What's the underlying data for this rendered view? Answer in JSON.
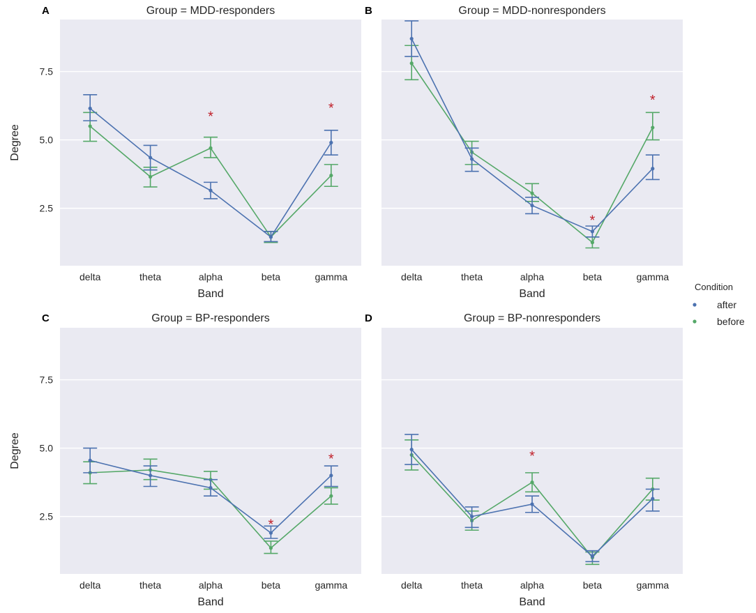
{
  "colors": {
    "after": "#4c72b0",
    "before": "#55a868",
    "star": "#c0202a",
    "background": "#eaeaf2"
  },
  "legend": {
    "title": "Condition",
    "items": [
      {
        "label": "after",
        "color": "#4c72b0"
      },
      {
        "label": "before",
        "color": "#55a868"
      }
    ]
  },
  "chart_data": [
    {
      "type": "line",
      "letter": "A",
      "title": "Group = MDD-responders",
      "xlabel": "Band",
      "ylabel": "Degree",
      "categories": [
        "delta",
        "theta",
        "alpha",
        "beta",
        "gamma"
      ],
      "yticks": [
        "2.5",
        "5.0",
        "7.5"
      ],
      "ylim": [
        0.4,
        9.4
      ],
      "series": [
        {
          "name": "after",
          "values": [
            6.15,
            4.35,
            3.15,
            1.45,
            4.9
          ],
          "err_low": [
            5.7,
            3.9,
            2.85,
            1.28,
            4.45
          ],
          "err_high": [
            6.65,
            4.8,
            3.45,
            1.65,
            5.35
          ]
        },
        {
          "name": "before",
          "values": [
            5.5,
            3.65,
            4.7,
            1.45,
            3.7
          ],
          "err_low": [
            4.95,
            3.28,
            4.35,
            1.25,
            3.3
          ],
          "err_high": [
            6.0,
            4.0,
            5.1,
            1.65,
            4.1
          ]
        }
      ],
      "significance": [
        {
          "category": "alpha",
          "label": "*",
          "y": 6.0
        },
        {
          "category": "gamma",
          "label": "*",
          "y": 6.3
        }
      ]
    },
    {
      "type": "line",
      "letter": "B",
      "title": "Group = MDD-nonresponders",
      "xlabel": "Band",
      "ylabel": "",
      "categories": [
        "delta",
        "theta",
        "alpha",
        "beta",
        "gamma"
      ],
      "yticks": [
        "2.5",
        "5.0",
        "7.5"
      ],
      "ylim": [
        0.4,
        9.4
      ],
      "series": [
        {
          "name": "after",
          "values": [
            8.7,
            4.3,
            2.6,
            1.65,
            3.95
          ],
          "err_low": [
            8.05,
            3.85,
            2.3,
            1.45,
            3.55
          ],
          "err_high": [
            9.35,
            4.7,
            2.9,
            1.85,
            4.45
          ]
        },
        {
          "name": "before",
          "values": [
            7.8,
            4.55,
            3.05,
            1.25,
            5.45
          ],
          "err_low": [
            7.2,
            4.1,
            2.75,
            1.05,
            5.0
          ],
          "err_high": [
            8.45,
            4.95,
            3.4,
            1.45,
            6.0
          ]
        }
      ],
      "significance": [
        {
          "category": "beta",
          "label": "*",
          "y": 2.2
        },
        {
          "category": "gamma",
          "label": "*",
          "y": 6.6
        }
      ]
    },
    {
      "type": "line",
      "letter": "C",
      "title": "Group = BP-responders",
      "xlabel": "Band",
      "ylabel": "Degree",
      "categories": [
        "delta",
        "theta",
        "alpha",
        "beta",
        "gamma"
      ],
      "yticks": [
        "2.5",
        "5.0",
        "7.5"
      ],
      "ylim": [
        0.4,
        9.4
      ],
      "series": [
        {
          "name": "after",
          "values": [
            4.55,
            4.0,
            3.55,
            1.9,
            4.0
          ],
          "err_low": [
            4.1,
            3.6,
            3.25,
            1.7,
            3.6
          ],
          "err_high": [
            5.0,
            4.35,
            3.85,
            2.15,
            4.35
          ]
        },
        {
          "name": "before",
          "values": [
            4.1,
            4.2,
            3.85,
            1.35,
            3.25
          ],
          "err_low": [
            3.7,
            3.85,
            3.5,
            1.15,
            2.95
          ],
          "err_high": [
            4.5,
            4.6,
            4.15,
            1.6,
            3.55
          ]
        }
      ],
      "significance": [
        {
          "category": "beta",
          "label": "*",
          "y": 2.35
        },
        {
          "category": "gamma",
          "label": "*",
          "y": 4.75
        }
      ]
    },
    {
      "type": "line",
      "letter": "D",
      "title": "Group = BP-nonresponders",
      "xlabel": "Band",
      "ylabel": "",
      "categories": [
        "delta",
        "theta",
        "alpha",
        "beta",
        "gamma"
      ],
      "yticks": [
        "2.5",
        "5.0",
        "7.5"
      ],
      "ylim": [
        0.4,
        9.4
      ],
      "series": [
        {
          "name": "after",
          "values": [
            4.95,
            2.5,
            2.95,
            1.05,
            3.15
          ],
          "err_low": [
            4.4,
            2.1,
            2.65,
            0.85,
            2.7
          ],
          "err_high": [
            5.5,
            2.85,
            3.25,
            1.25,
            3.5
          ]
        },
        {
          "name": "before",
          "values": [
            4.75,
            2.35,
            3.75,
            1.0,
            3.5
          ],
          "err_low": [
            4.2,
            2.0,
            3.4,
            0.75,
            3.1
          ],
          "err_high": [
            5.3,
            2.7,
            4.1,
            1.2,
            3.9
          ]
        }
      ],
      "significance": [
        {
          "category": "alpha",
          "label": "*",
          "y": 4.85
        }
      ]
    }
  ]
}
